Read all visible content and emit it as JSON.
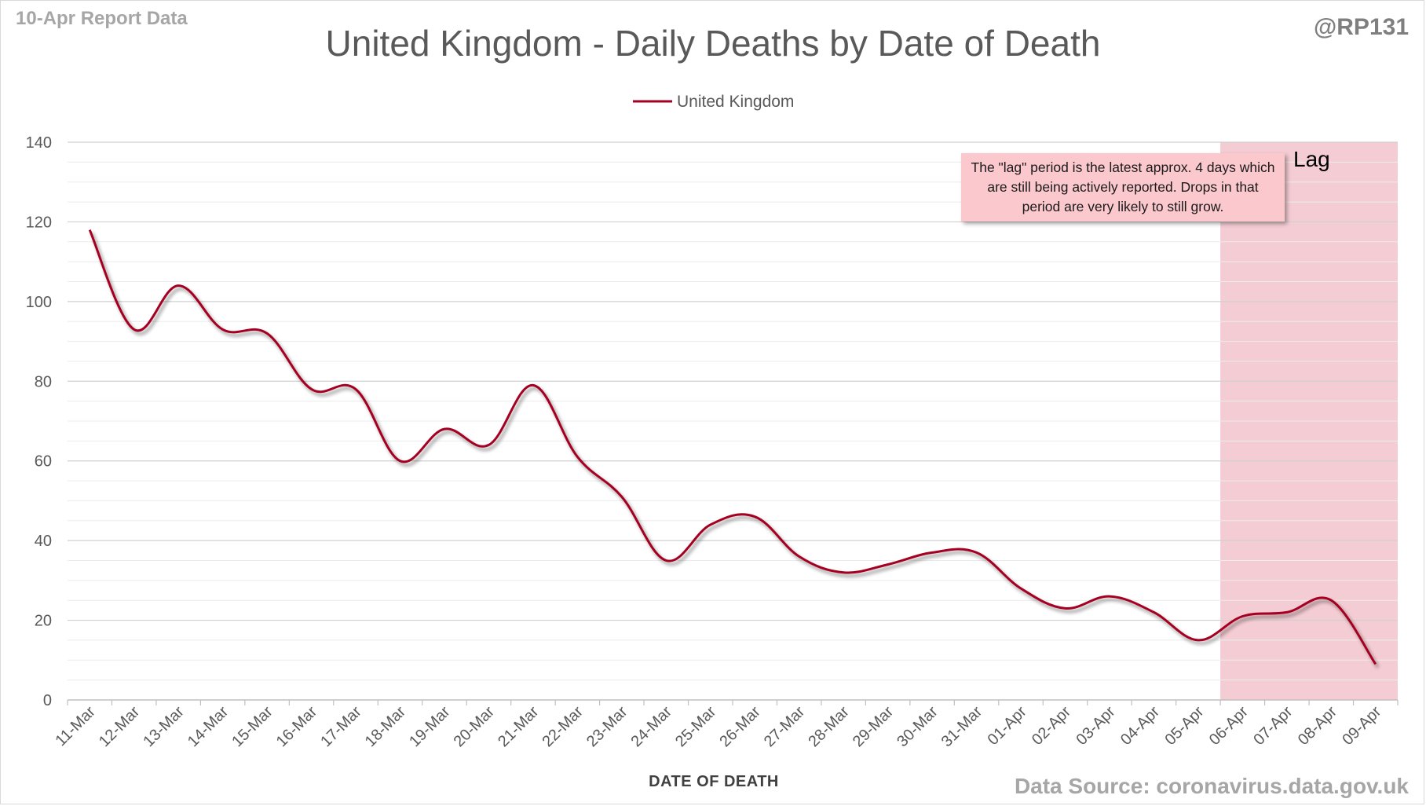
{
  "header": {
    "report_tag": "10-Apr Report Data",
    "handle": "@RP131",
    "source": "Data Source: coronavirus.data.gov.uk"
  },
  "annotation": {
    "note": "The \"lag\" period is the latest approx. 4 days which are still being actively reported. Drops in that period are very likely to still grow.",
    "lag_label": "Lag",
    "lag_color": "#f4ccd3",
    "lag_start": "05-Apr",
    "lag_end": "09-Apr"
  },
  "chart_data": {
    "type": "line",
    "title": "United Kingdom - Daily Deaths by Date of Death",
    "xlabel": "DATE OF DEATH",
    "ylabel": "",
    "ylim": [
      0,
      140
    ],
    "yticks": [
      0,
      20,
      40,
      60,
      80,
      100,
      120,
      140
    ],
    "grid": true,
    "legend_position": "top",
    "line_color": "#a50021",
    "categories": [
      "11-Mar",
      "12-Mar",
      "13-Mar",
      "14-Mar",
      "15-Mar",
      "16-Mar",
      "17-Mar",
      "18-Mar",
      "19-Mar",
      "20-Mar",
      "21-Mar",
      "22-Mar",
      "23-Mar",
      "24-Mar",
      "25-Mar",
      "26-Mar",
      "27-Mar",
      "28-Mar",
      "29-Mar",
      "30-Mar",
      "31-Mar",
      "01-Apr",
      "02-Apr",
      "03-Apr",
      "04-Apr",
      "05-Apr",
      "06-Apr",
      "07-Apr",
      "08-Apr",
      "09-Apr"
    ],
    "series": [
      {
        "name": "United Kingdom",
        "values": [
          118,
          93,
          104,
          93,
          92,
          78,
          78,
          60,
          68,
          64,
          79,
          61,
          51,
          35,
          44,
          46,
          36,
          32,
          34,
          37,
          37,
          28,
          23,
          26,
          22,
          15,
          21,
          22,
          25,
          9
        ]
      }
    ]
  }
}
